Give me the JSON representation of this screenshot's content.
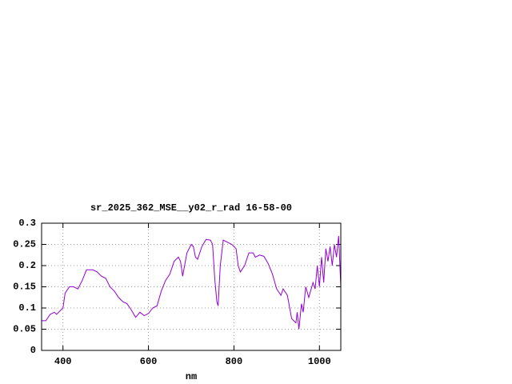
{
  "chart_data": {
    "type": "line",
    "title": "sr_2025_362_MSE__y02_r_rad 16-58-00",
    "x_label": "nm",
    "color": "#9400d3",
    "grid": true,
    "xlim": [
      350,
      1050
    ],
    "ylim": [
      0,
      0.3
    ],
    "xticks": [
      400,
      600,
      800,
      1000
    ],
    "yticks": [
      0,
      0.05,
      0.1,
      0.15,
      0.2,
      0.25,
      0.3
    ],
    "x": [
      350,
      360,
      370,
      380,
      385,
      390,
      400,
      405,
      415,
      425,
      435,
      445,
      455,
      470,
      480,
      490,
      500,
      510,
      520,
      530,
      540,
      550,
      560,
      570,
      580,
      590,
      600,
      610,
      620,
      630,
      640,
      650,
      660,
      670,
      675,
      680,
      690,
      700,
      705,
      710,
      715,
      725,
      735,
      745,
      750,
      755,
      760,
      763,
      768,
      775,
      785,
      795,
      805,
      810,
      815,
      825,
      835,
      845,
      850,
      860,
      870,
      880,
      890,
      900,
      910,
      915,
      925,
      935,
      945,
      948,
      952,
      958,
      962,
      968,
      975,
      985,
      990,
      995,
      1000,
      1005,
      1010,
      1015,
      1020,
      1025,
      1030,
      1035,
      1040,
      1045,
      1050
    ],
    "values": [
      0.07,
      0.07,
      0.085,
      0.09,
      0.085,
      0.09,
      0.1,
      0.135,
      0.15,
      0.15,
      0.145,
      0.165,
      0.19,
      0.19,
      0.185,
      0.175,
      0.17,
      0.15,
      0.14,
      0.125,
      0.115,
      0.11,
      0.095,
      0.078,
      0.09,
      0.082,
      0.087,
      0.1,
      0.105,
      0.14,
      0.165,
      0.18,
      0.21,
      0.22,
      0.21,
      0.175,
      0.23,
      0.25,
      0.245,
      0.22,
      0.215,
      0.245,
      0.262,
      0.26,
      0.25,
      0.17,
      0.115,
      0.105,
      0.2,
      0.26,
      0.255,
      0.25,
      0.24,
      0.2,
      0.185,
      0.2,
      0.23,
      0.23,
      0.22,
      0.225,
      0.222,
      0.205,
      0.18,
      0.145,
      0.13,
      0.145,
      0.13,
      0.075,
      0.065,
      0.09,
      0.05,
      0.11,
      0.09,
      0.15,
      0.125,
      0.16,
      0.145,
      0.2,
      0.15,
      0.22,
      0.16,
      0.24,
      0.21,
      0.245,
      0.2,
      0.25,
      0.22,
      0.27,
      0.15
    ]
  }
}
